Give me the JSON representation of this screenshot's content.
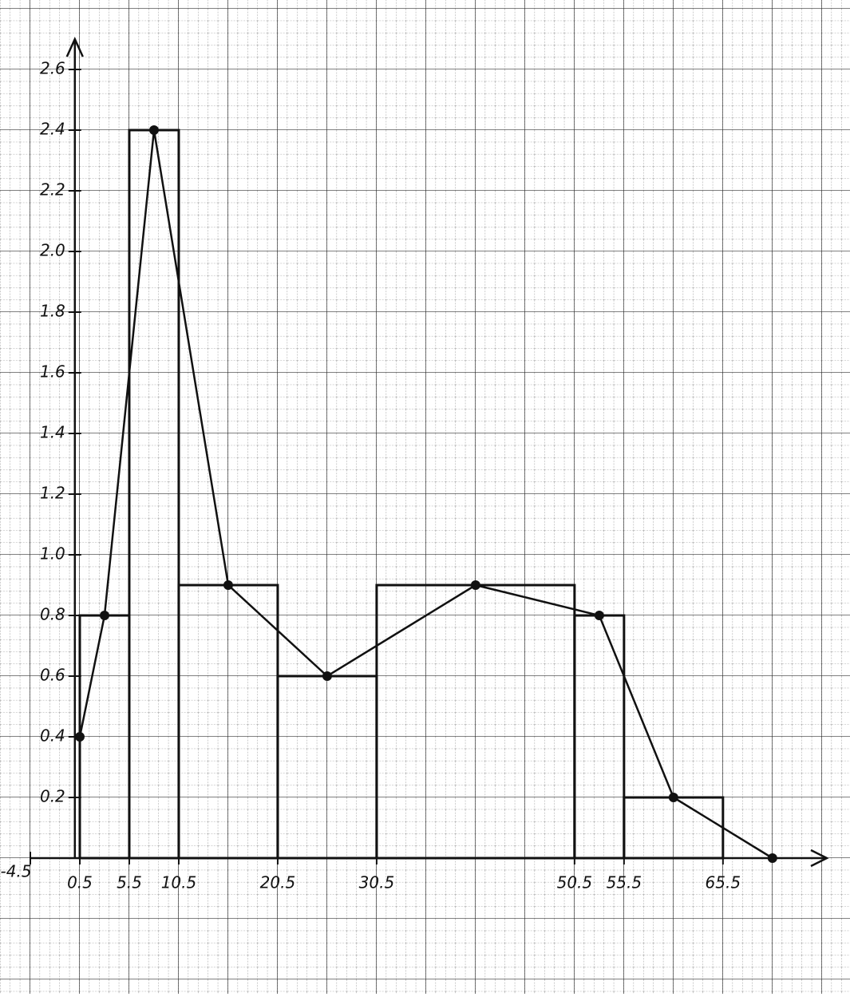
{
  "chart_data": {
    "type": "histogram",
    "bins": [
      0.5,
      5.5,
      10.5,
      20.5,
      30.5,
      50.5,
      55.5,
      65.5
    ],
    "values": [
      0.8,
      2.4,
      0.9,
      0.6,
      0.9,
      0.8,
      0.2
    ],
    "polygon": {
      "x": [
        0.5,
        3,
        8,
        15.5,
        25.5,
        40.5,
        53,
        60.5,
        70.5
      ],
      "values": [
        0.4,
        0.8,
        2.4,
        0.9,
        0.6,
        0.9,
        0.8,
        0.2,
        0
      ]
    },
    "color": "#111111",
    "xlim": [
      -4.5,
      76
    ],
    "ylim": [
      0,
      2.7
    ],
    "xticks": [
      -4.5,
      0.5,
      5.5,
      10.5,
      20.5,
      30.5,
      50.5,
      55.5,
      65.5
    ],
    "yticks": [
      0.2,
      0.4,
      0.6,
      0.8,
      {
        "value": 1.0,
        "label": "1.0"
      },
      1.2,
      1.4,
      1.6,
      1.8,
      {
        "value": 2.0,
        "label": "2.0"
      },
      2.2,
      2.4,
      2.6
    ]
  }
}
